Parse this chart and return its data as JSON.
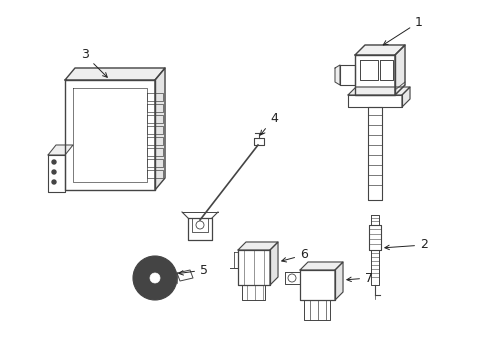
{
  "background_color": "#ffffff",
  "line_color": "#444444",
  "label_color": "#222222",
  "figsize": [
    4.89,
    3.6
  ],
  "dpi": 100,
  "lw": 0.8
}
